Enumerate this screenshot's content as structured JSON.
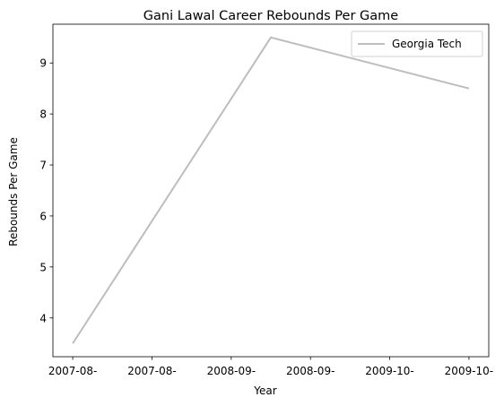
{
  "chart_data": {
    "type": "line",
    "title": "Gani Lawal Career Rebounds Per Game",
    "xlabel": "Year",
    "ylabel": "Rebounds Per Game",
    "x_tick_labels": [
      "2007-08-",
      "2007-08-",
      "2008-09-",
      "2008-09-",
      "2009-10-",
      "2009-10-"
    ],
    "x_tick_positions": [
      0,
      0.4,
      0.8,
      1.2,
      1.6,
      2.0
    ],
    "x_labels": [
      "2007-08",
      "2008-09",
      "2009-10"
    ],
    "x": [
      0,
      1,
      2
    ],
    "xlim": [
      -0.1,
      2.1
    ],
    "ylim": [
      3.24,
      9.76
    ],
    "yticks": [
      4,
      5,
      6,
      7,
      8,
      9
    ],
    "grid": false,
    "legend_position": "top-right",
    "series": [
      {
        "name": "Georgia Tech",
        "values": [
          3.5,
          9.5,
          8.5
        ],
        "color": "#bdbdbd"
      }
    ]
  }
}
